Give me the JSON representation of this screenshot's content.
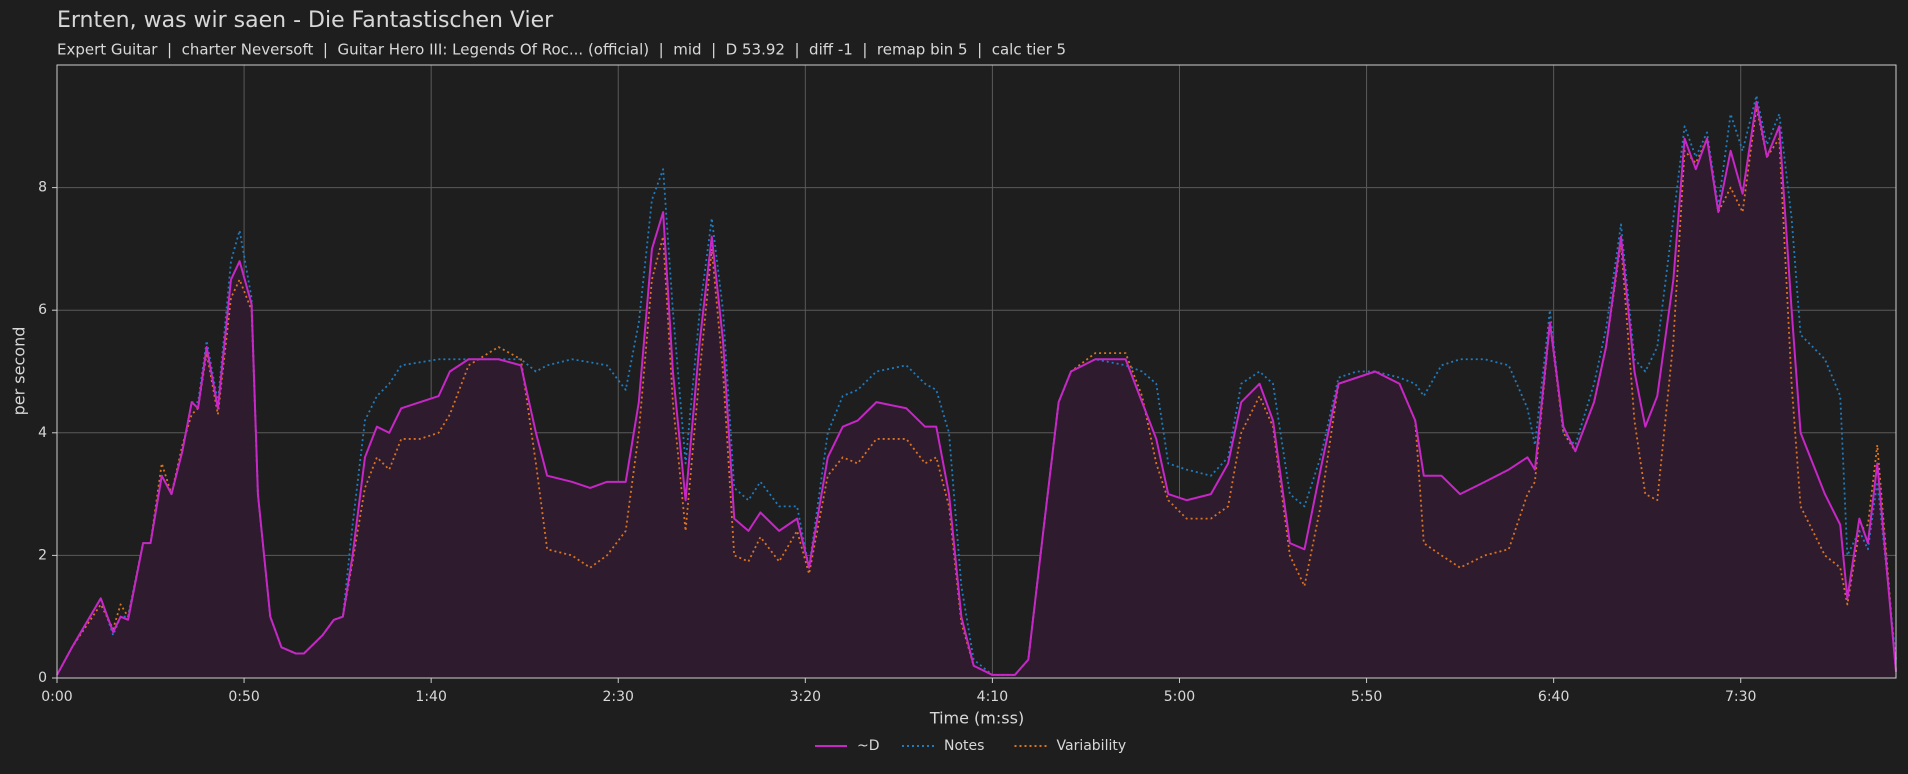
{
  "chart_data": {
    "type": "line",
    "title": "Ernten, was wir saen - Die Fantastischen Vier",
    "subtitle": "Expert Guitar  |  charter Neversoft  |  Guitar Hero III: Legends Of Roc... (official)  |  mid  |  D 53.92  |  diff -1  |  remap bin 5  |  calc tier 5",
    "x_label": "Time (m:ss)",
    "y_label": "per second",
    "xlim": [
      0,
      491.5
    ],
    "ylim": [
      0,
      10
    ],
    "xticks": [
      {
        "value": 0,
        "label": "0:00"
      },
      {
        "value": 50,
        "label": "0:50"
      },
      {
        "value": 100,
        "label": "1:40"
      },
      {
        "value": 150,
        "label": "2:30"
      },
      {
        "value": 200,
        "label": "3:20"
      },
      {
        "value": 250,
        "label": "4:10"
      },
      {
        "value": 300,
        "label": "5:00"
      },
      {
        "value": 350,
        "label": "5:50"
      },
      {
        "value": 400,
        "label": "6:40"
      },
      {
        "value": 450,
        "label": "7:30"
      }
    ],
    "yticks": [
      0,
      2,
      4,
      6,
      8
    ],
    "grid": true,
    "legend": "bottom",
    "x": [
      0,
      4,
      11.7,
      15,
      17,
      19,
      23,
      25,
      28,
      30.6,
      33.5,
      36,
      37.7,
      40,
      43,
      46.5,
      48.8,
      52,
      53.7,
      57,
      60,
      63.8,
      66,
      71,
      74,
      76.4,
      79,
      82.3,
      85.5,
      88.8,
      92,
      97,
      102,
      105,
      110,
      118,
      124,
      128,
      131,
      137.6,
      142.5,
      147,
      152,
      155.5,
      159,
      162,
      164.6,
      168,
      171.8,
      175,
      178,
      181,
      184.8,
      188,
      193,
      197.8,
      201,
      206,
      210,
      214,
      219,
      227,
      232,
      235,
      238.4,
      241.7,
      245,
      250,
      256,
      259.6,
      263.8,
      267.7,
      271,
      277.5,
      285.6,
      290,
      293.8,
      297,
      301.9,
      308.4,
      313,
      316.5,
      321.4,
      325,
      329.5,
      333.4,
      337.7,
      342.5,
      347.4,
      352.3,
      358.8,
      363,
      365.3,
      370,
      375,
      381.6,
      388,
      393,
      395,
      399,
      402.6,
      405.8,
      410.8,
      414,
      418,
      421.6,
      424.5,
      427.7,
      432,
      435,
      438,
      441,
      444,
      447.3,
      450.5,
      454.2,
      457,
      460.3,
      463.6,
      466,
      472.5,
      476.6,
      478.5,
      481.7,
      484,
      486.5,
      491.5
    ],
    "series": [
      {
        "name": "~D",
        "color": "#c627c6",
        "linestyle": "solid",
        "fill": "#2e1b2e",
        "values": [
          0.05,
          0.5,
          1.3,
          0.75,
          1.0,
          0.95,
          2.2,
          2.2,
          3.3,
          3.0,
          3.7,
          4.5,
          4.4,
          5.4,
          4.4,
          6.5,
          6.8,
          6.1,
          3.0,
          1.0,
          0.5,
          0.4,
          0.4,
          0.7,
          0.95,
          1.0,
          2.0,
          3.6,
          4.1,
          4.0,
          4.4,
          4.5,
          4.6,
          5.0,
          5.2,
          5.2,
          5.1,
          4.0,
          3.3,
          3.2,
          3.1,
          3.2,
          3.2,
          4.5,
          7.0,
          7.6,
          5.0,
          2.9,
          5.5,
          7.2,
          5.5,
          2.6,
          2.4,
          2.7,
          2.4,
          2.6,
          1.8,
          3.6,
          4.1,
          4.2,
          4.5,
          4.4,
          4.1,
          4.1,
          3.0,
          1.0,
          0.2,
          0.05,
          0.05,
          0.3,
          2.5,
          4.5,
          5.0,
          5.2,
          5.2,
          4.5,
          3.9,
          3.0,
          2.9,
          3.0,
          3.5,
          4.5,
          4.8,
          4.2,
          2.2,
          2.1,
          3.4,
          4.8,
          4.9,
          5.0,
          4.8,
          4.2,
          3.3,
          3.3,
          3.0,
          3.2,
          3.4,
          3.6,
          3.4,
          5.8,
          4.1,
          3.7,
          4.5,
          5.4,
          7.2,
          5.0,
          4.1,
          4.6,
          6.5,
          8.8,
          8.3,
          8.8,
          7.6,
          8.6,
          7.9,
          9.4,
          8.5,
          9.0,
          6.0,
          4.0,
          3.0,
          2.5,
          1.3,
          2.6,
          2.2,
          3.5,
          0.1
        ]
      },
      {
        "name": "Notes",
        "color": "#1f7bbf",
        "linestyle": "dotted",
        "values": [
          0.05,
          0.5,
          1.3,
          0.7,
          1.0,
          1.0,
          2.2,
          2.2,
          3.3,
          3.0,
          3.7,
          4.5,
          4.5,
          5.5,
          4.5,
          6.8,
          7.3,
          6.2,
          3.0,
          1.0,
          0.5,
          0.4,
          0.4,
          0.7,
          0.95,
          1.0,
          2.5,
          4.2,
          4.6,
          4.8,
          5.1,
          5.15,
          5.2,
          5.2,
          5.2,
          5.2,
          5.2,
          5.0,
          5.1,
          5.2,
          5.15,
          5.1,
          4.7,
          5.8,
          7.8,
          8.3,
          6.0,
          3.5,
          6.0,
          7.5,
          6.0,
          3.1,
          2.9,
          3.2,
          2.8,
          2.8,
          1.8,
          4.0,
          4.6,
          4.7,
          5.0,
          5.1,
          4.8,
          4.7,
          4.0,
          1.5,
          0.3,
          0.05,
          0.05,
          0.3,
          2.5,
          4.5,
          5.0,
          5.2,
          5.1,
          5.0,
          4.8,
          3.5,
          3.4,
          3.3,
          3.6,
          4.8,
          5.0,
          4.8,
          3.0,
          2.8,
          3.6,
          4.9,
          5.0,
          5.0,
          4.9,
          4.8,
          4.6,
          5.1,
          5.2,
          5.2,
          5.1,
          4.4,
          3.8,
          6.0,
          4.0,
          3.8,
          4.8,
          5.7,
          7.4,
          5.2,
          5.0,
          5.4,
          7.5,
          9.0,
          8.5,
          8.9,
          7.7,
          9.2,
          8.6,
          9.5,
          8.7,
          9.2,
          7.5,
          5.6,
          5.2,
          4.6,
          2.0,
          2.4,
          2.1,
          3.2,
          0.3
        ]
      },
      {
        "name": "Variability",
        "color": "#d9731f",
        "linestyle": "dotted",
        "values": [
          0.05,
          0.5,
          1.2,
          0.8,
          1.2,
          1.0,
          2.2,
          2.2,
          3.5,
          3.0,
          3.8,
          4.3,
          4.4,
          5.3,
          4.3,
          6.2,
          6.5,
          6.0,
          3.0,
          1.0,
          0.5,
          0.4,
          0.4,
          0.7,
          0.95,
          1.0,
          1.9,
          3.1,
          3.6,
          3.4,
          3.9,
          3.9,
          4.0,
          4.3,
          5.1,
          5.4,
          5.2,
          3.5,
          2.1,
          2.0,
          1.8,
          2.0,
          2.4,
          4.0,
          6.5,
          7.2,
          4.5,
          2.4,
          5.0,
          7.0,
          5.0,
          2.0,
          1.9,
          2.3,
          1.9,
          2.4,
          1.7,
          3.3,
          3.6,
          3.5,
          3.9,
          3.9,
          3.5,
          3.6,
          2.8,
          0.9,
          0.2,
          0.05,
          0.05,
          0.3,
          2.5,
          4.5,
          5.0,
          5.3,
          5.3,
          4.6,
          3.5,
          2.9,
          2.6,
          2.6,
          2.8,
          4.0,
          4.6,
          4.1,
          2.0,
          1.5,
          2.8,
          4.8,
          4.9,
          5.0,
          4.8,
          4.2,
          2.2,
          2.0,
          1.8,
          2.0,
          2.1,
          3.0,
          3.2,
          5.8,
          4.0,
          3.7,
          4.5,
          5.4,
          7.1,
          4.2,
          3.0,
          2.9,
          5.5,
          8.6,
          8.4,
          8.8,
          7.6,
          8.0,
          7.6,
          9.3,
          8.5,
          8.8,
          4.8,
          2.8,
          2.0,
          1.8,
          1.2,
          2.4,
          2.5,
          3.8,
          0.1
        ]
      }
    ]
  }
}
